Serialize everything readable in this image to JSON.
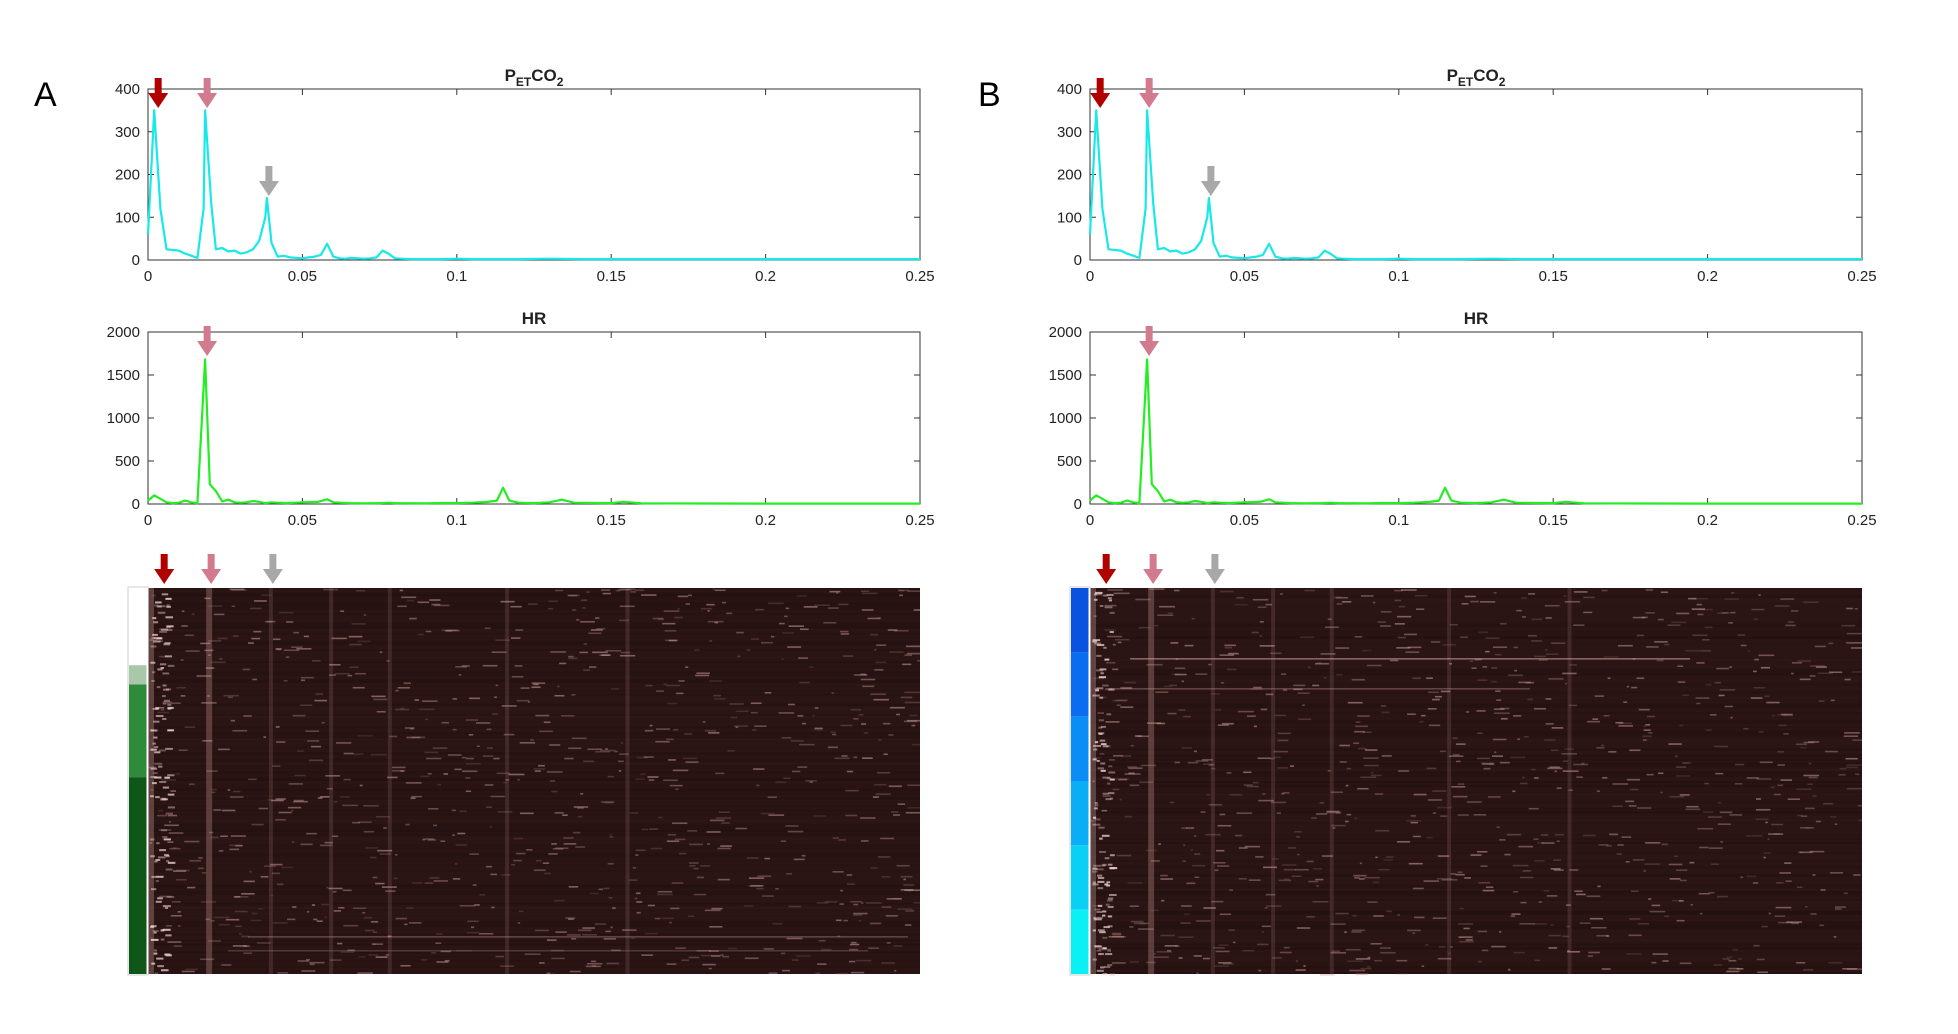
{
  "figure": {
    "panels": [
      {
        "label": "A",
        "petco2_title": {
          "main": "P",
          "sub": "ET",
          "mid": "CO",
          "sub2": "2"
        },
        "hr_title": "HR",
        "heatmap_sidebar_colors": [
          "#ffffff",
          "#a9c8a9",
          "#2e8b3a",
          "#0f5718"
        ]
      },
      {
        "label": "B",
        "petco2_title": {
          "main": "P",
          "sub": "ET",
          "mid": "CO",
          "sub2": "2"
        },
        "hr_title": "HR",
        "heatmap_sidebar_colors": [
          "#0a52e0",
          "#0a6cf0",
          "#0a8ef5",
          "#0aaef5",
          "#0ad0f5",
          "#0af0f5"
        ]
      }
    ],
    "arrow_colors": {
      "dark_red": "#b00000",
      "pink": "#d27a8e",
      "gray": "#a8a8a8"
    },
    "arrow_frequencies": {
      "dark_red": 0.002,
      "pink": 0.0185,
      "gray": 0.0385
    },
    "heatmap_colors": {
      "background": "#2a1414",
      "highlight": "#c79a96"
    }
  },
  "chart_data": [
    {
      "type": "line",
      "title": "PETCO2",
      "color": "#18e8e8",
      "xlim": [
        0,
        0.25
      ],
      "ylim": [
        0,
        400
      ],
      "xticks": [
        "0",
        "0.05",
        "0.1",
        "0.15",
        "0.2",
        "0.25"
      ],
      "yticks": [
        "0",
        "100",
        "200",
        "300",
        "400"
      ],
      "x": [
        0,
        0.002,
        0.004,
        0.006,
        0.01,
        0.012,
        0.014,
        0.016,
        0.018,
        0.0185,
        0.0205,
        0.022,
        0.024,
        0.026,
        0.028,
        0.03,
        0.032,
        0.034,
        0.036,
        0.038,
        0.0385,
        0.04,
        0.042,
        0.044,
        0.046,
        0.048,
        0.05,
        0.052,
        0.054,
        0.056,
        0.058,
        0.06,
        0.062,
        0.064,
        0.066,
        0.068,
        0.07,
        0.072,
        0.074,
        0.076,
        0.078,
        0.08,
        0.082,
        0.085,
        0.09,
        0.095,
        0.1,
        0.105,
        0.11,
        0.115,
        0.12,
        0.13,
        0.14,
        0.15,
        0.16,
        0.18,
        0.2,
        0.22,
        0.25
      ],
      "values": [
        60,
        350,
        120,
        25,
        22,
        15,
        10,
        5,
        120,
        350,
        130,
        25,
        28,
        20,
        22,
        15,
        18,
        25,
        45,
        100,
        145,
        40,
        8,
        10,
        6,
        5,
        4,
        6,
        8,
        12,
        38,
        8,
        4,
        3,
        5,
        4,
        3,
        4,
        6,
        22,
        14,
        4,
        3,
        2,
        2,
        2,
        3,
        2,
        2,
        2,
        2,
        3,
        2,
        2,
        2,
        2,
        2,
        2,
        2
      ]
    },
    {
      "type": "line",
      "title": "HR",
      "color": "#22ee22",
      "xlim": [
        0,
        0.25
      ],
      "ylim": [
        0,
        2000
      ],
      "xticks": [
        "0",
        "0.05",
        "0.1",
        "0.15",
        "0.2",
        "0.25"
      ],
      "yticks": [
        "0",
        "500",
        "1000",
        "1500",
        "2000"
      ],
      "x": [
        0,
        0.002,
        0.004,
        0.006,
        0.008,
        0.01,
        0.012,
        0.014,
        0.016,
        0.0185,
        0.02,
        0.022,
        0.024,
        0.026,
        0.028,
        0.03,
        0.032,
        0.034,
        0.036,
        0.038,
        0.04,
        0.042,
        0.045,
        0.05,
        0.055,
        0.058,
        0.06,
        0.065,
        0.07,
        0.075,
        0.078,
        0.08,
        0.09,
        0.095,
        0.1,
        0.105,
        0.11,
        0.113,
        0.115,
        0.117,
        0.12,
        0.125,
        0.13,
        0.134,
        0.138,
        0.145,
        0.15,
        0.154,
        0.16,
        0.18,
        0.2,
        0.22,
        0.25
      ],
      "values": [
        40,
        100,
        60,
        20,
        10,
        15,
        40,
        20,
        10,
        1680,
        230,
        150,
        30,
        50,
        20,
        15,
        20,
        35,
        25,
        10,
        20,
        15,
        10,
        20,
        25,
        55,
        20,
        10,
        8,
        10,
        15,
        10,
        8,
        12,
        10,
        15,
        25,
        40,
        190,
        40,
        15,
        10,
        20,
        50,
        15,
        12,
        10,
        25,
        8,
        6,
        5,
        5,
        5
      ]
    }
  ]
}
